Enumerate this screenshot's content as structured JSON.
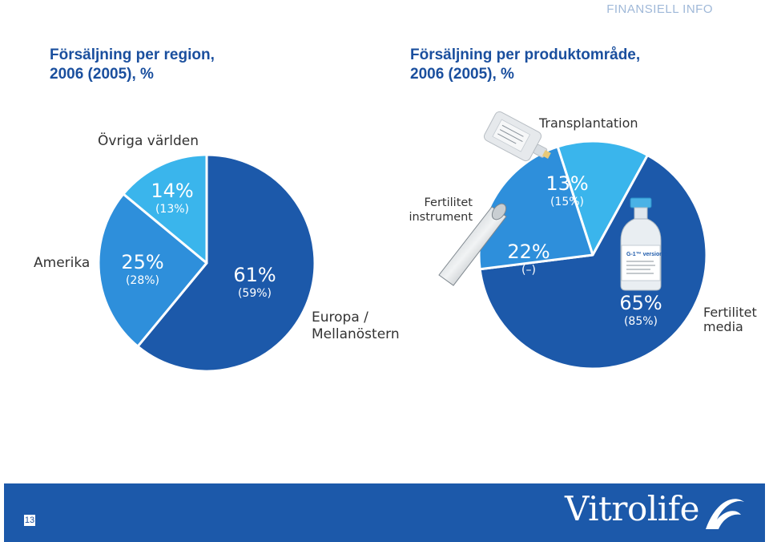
{
  "header": {
    "tag": "FINANSIELL INFO"
  },
  "left_chart": {
    "title_line1": "Försäljning per region,",
    "title_line2": "2006 (2005), %",
    "labels": {
      "ovriga": "Övriga världen",
      "amerika": "Amerika",
      "europa_1": "Europa /",
      "europa_2": "Mellanöstern"
    },
    "pct_labels": [
      {
        "main": "14%",
        "prev": "(13%)"
      },
      {
        "main": "25%",
        "prev": "(28%)"
      },
      {
        "main": "61%",
        "prev": "(59%)"
      }
    ]
  },
  "right_chart": {
    "title_line1": "Försäljning per produktområde,",
    "title_line2": "2006 (2005), %",
    "labels": {
      "transplantation": "Transplantation",
      "instrument_1": "Fertilitet",
      "instrument_2": "instrument",
      "media_1": "Fertilitet",
      "media_2": "media"
    },
    "pct_labels": [
      {
        "main": "13%",
        "prev": "(15%)"
      },
      {
        "main": "22%",
        "prev": "(–)"
      },
      {
        "main": "65%",
        "prev": "(85%)"
      }
    ],
    "product_label": "G-1™ version 5"
  },
  "chart_data": [
    {
      "type": "pie",
      "title": "Försäljning per region, 2006 (2005), %",
      "categories": [
        "Övriga världen",
        "Amerika",
        "Europa / Mellanöstern"
      ],
      "series": [
        {
          "name": "2006",
          "values": [
            14,
            25,
            61
          ]
        },
        {
          "name": "2005",
          "values": [
            13,
            28,
            59
          ]
        }
      ],
      "colors": [
        "#3ab5ec",
        "#2e8fdb",
        "#1c59aa"
      ]
    },
    {
      "type": "pie",
      "title": "Försäljning per produktområde, 2006 (2005), %",
      "categories": [
        "Transplantation",
        "Fertilitet instrument",
        "Fertilitet media"
      ],
      "series": [
        {
          "name": "2006",
          "values": [
            13,
            22,
            65
          ]
        },
        {
          "name": "2005",
          "values": [
            15,
            null,
            85
          ]
        }
      ],
      "colors": [
        "#3ab5ec",
        "#2e8fdb",
        "#1c59aa"
      ]
    }
  ],
  "footer": {
    "page_number": "13",
    "logo": "Vitrolife"
  }
}
